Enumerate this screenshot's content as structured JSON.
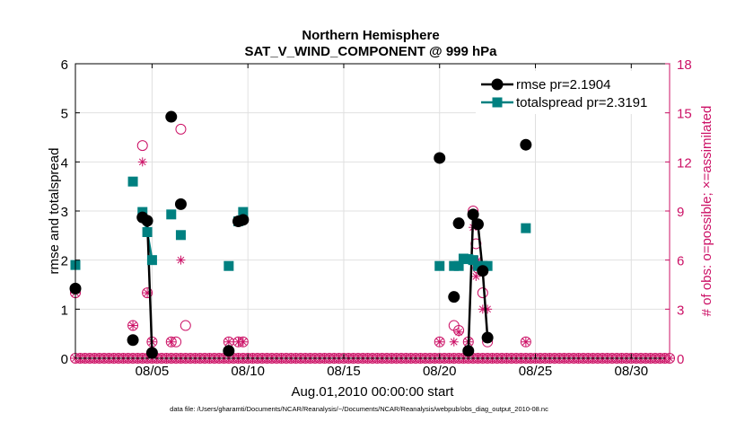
{
  "chart_data": {
    "type": "scatter",
    "title": "Northern Hemisphere",
    "subtitle": "SAT_V_WIND_COMPONENT @ 999 hPa",
    "xlabel": "Aug.01,2010 00:00:00 start",
    "ylabel_left": "rmse and totalspread",
    "ylabel_right": "# of obs: o=possible; ×=assimilated",
    "footer": "data file: /Users/gharamti/Documents/NCAR/Reanalysis/~/Documents/NCAR/Reanalysis/webpub/obs_diag_output_2010-08.nc",
    "xlim": [
      1,
      32
    ],
    "ylim_left": [
      0,
      6
    ],
    "ylim_right": [
      0,
      18
    ],
    "x_ticks": [
      5,
      10,
      15,
      20,
      25,
      30
    ],
    "x_tick_labels": [
      "08/05",
      "08/10",
      "08/15",
      "08/20",
      "08/25",
      "08/30"
    ],
    "y_ticks_left": [
      0,
      1,
      2,
      3,
      4,
      5,
      6
    ],
    "y_ticks_right": [
      0,
      3,
      6,
      9,
      12,
      15,
      18
    ],
    "grid": true,
    "legend_position": "top-right",
    "colors": {
      "rmse": "#000000",
      "totalspread": "#008080",
      "obs": "#cc1166",
      "axis": "#000000",
      "grid": "#e0e0e0"
    },
    "series": [
      {
        "name": "rmse",
        "legend_label": "rmse pr=2.1904",
        "marker": "circle",
        "line_segments": [
          [
            4.5,
            4.75,
            5.0
          ],
          [
            21.5,
            21.75,
            22.0,
            22.25,
            22.5
          ]
        ],
        "points": [
          [
            1.0,
            1.42
          ],
          [
            4.0,
            0.37
          ],
          [
            4.5,
            2.87
          ],
          [
            4.75,
            2.8
          ],
          [
            5.0,
            0.11
          ],
          [
            6.0,
            4.92
          ],
          [
            6.5,
            3.14
          ],
          [
            9.0,
            0.15
          ],
          [
            9.5,
            2.79
          ],
          [
            9.75,
            2.82
          ],
          [
            20.0,
            4.08
          ],
          [
            20.75,
            1.25
          ],
          [
            21.0,
            2.75
          ],
          [
            21.5,
            0.15
          ],
          [
            21.75,
            2.93
          ],
          [
            22.0,
            2.73
          ],
          [
            22.25,
            1.78
          ],
          [
            22.5,
            0.42
          ],
          [
            24.5,
            4.35
          ]
        ]
      },
      {
        "name": "totalspread",
        "legend_label": "totalspread pr=2.3191",
        "marker": "square",
        "line_segments": [
          [
            4.5,
            4.75,
            5.0
          ],
          [
            20.75,
            21.0,
            21.25,
            21.5,
            21.75,
            22.0,
            22.25,
            22.5
          ]
        ],
        "points": [
          [
            1.0,
            1.9
          ],
          [
            4.0,
            3.6
          ],
          [
            4.5,
            2.98
          ],
          [
            4.75,
            2.57
          ],
          [
            5.0,
            2.0
          ],
          [
            6.0,
            2.93
          ],
          [
            6.5,
            2.51
          ],
          [
            9.0,
            1.88
          ],
          [
            9.5,
            2.79
          ],
          [
            9.75,
            2.98
          ],
          [
            20.0,
            1.88
          ],
          [
            20.75,
            1.88
          ],
          [
            21.0,
            1.88
          ],
          [
            21.25,
            2.03
          ],
          [
            21.5,
            2.02
          ],
          [
            21.75,
            2.0
          ],
          [
            22.0,
            1.88
          ],
          [
            22.25,
            1.88
          ],
          [
            22.5,
            1.88
          ],
          [
            24.5,
            2.65
          ]
        ]
      },
      {
        "name": "obs_possible",
        "marker": "open-circle",
        "points": [
          [
            1.0,
            4
          ],
          [
            4.0,
            2
          ],
          [
            4.5,
            13
          ],
          [
            4.75,
            4
          ],
          [
            5.0,
            1
          ],
          [
            6.0,
            1
          ],
          [
            6.25,
            1
          ],
          [
            6.5,
            14
          ],
          [
            6.75,
            2
          ],
          [
            9.0,
            1
          ],
          [
            9.5,
            1
          ],
          [
            9.75,
            1
          ],
          [
            20.0,
            1
          ],
          [
            20.75,
            2
          ],
          [
            21.0,
            1.7
          ],
          [
            21.5,
            1
          ],
          [
            21.75,
            9
          ],
          [
            21.9,
            7
          ],
          [
            22.0,
            5.5
          ],
          [
            22.25,
            4
          ],
          [
            22.5,
            1
          ],
          [
            24.5,
            1
          ]
        ]
      },
      {
        "name": "obs_assimilated",
        "marker": "asterisk",
        "points": [
          [
            1.0,
            4
          ],
          [
            4.0,
            2
          ],
          [
            4.5,
            12
          ],
          [
            4.75,
            4
          ],
          [
            5.0,
            1
          ],
          [
            6.0,
            1
          ],
          [
            6.5,
            6
          ],
          [
            9.0,
            1
          ],
          [
            9.5,
            1
          ],
          [
            9.75,
            1
          ],
          [
            20.0,
            1
          ],
          [
            20.75,
            1
          ],
          [
            21.0,
            1.6
          ],
          [
            21.5,
            1
          ],
          [
            21.75,
            8
          ],
          [
            21.9,
            5
          ],
          [
            22.0,
            6
          ],
          [
            22.25,
            3
          ],
          [
            22.5,
            3
          ],
          [
            24.5,
            1
          ]
        ]
      },
      {
        "name": "obs_zero",
        "marker": "circle-asterisk",
        "x_start": 1.0,
        "x_end": 32.0,
        "x_step": 0.25,
        "value": 0
      }
    ]
  }
}
